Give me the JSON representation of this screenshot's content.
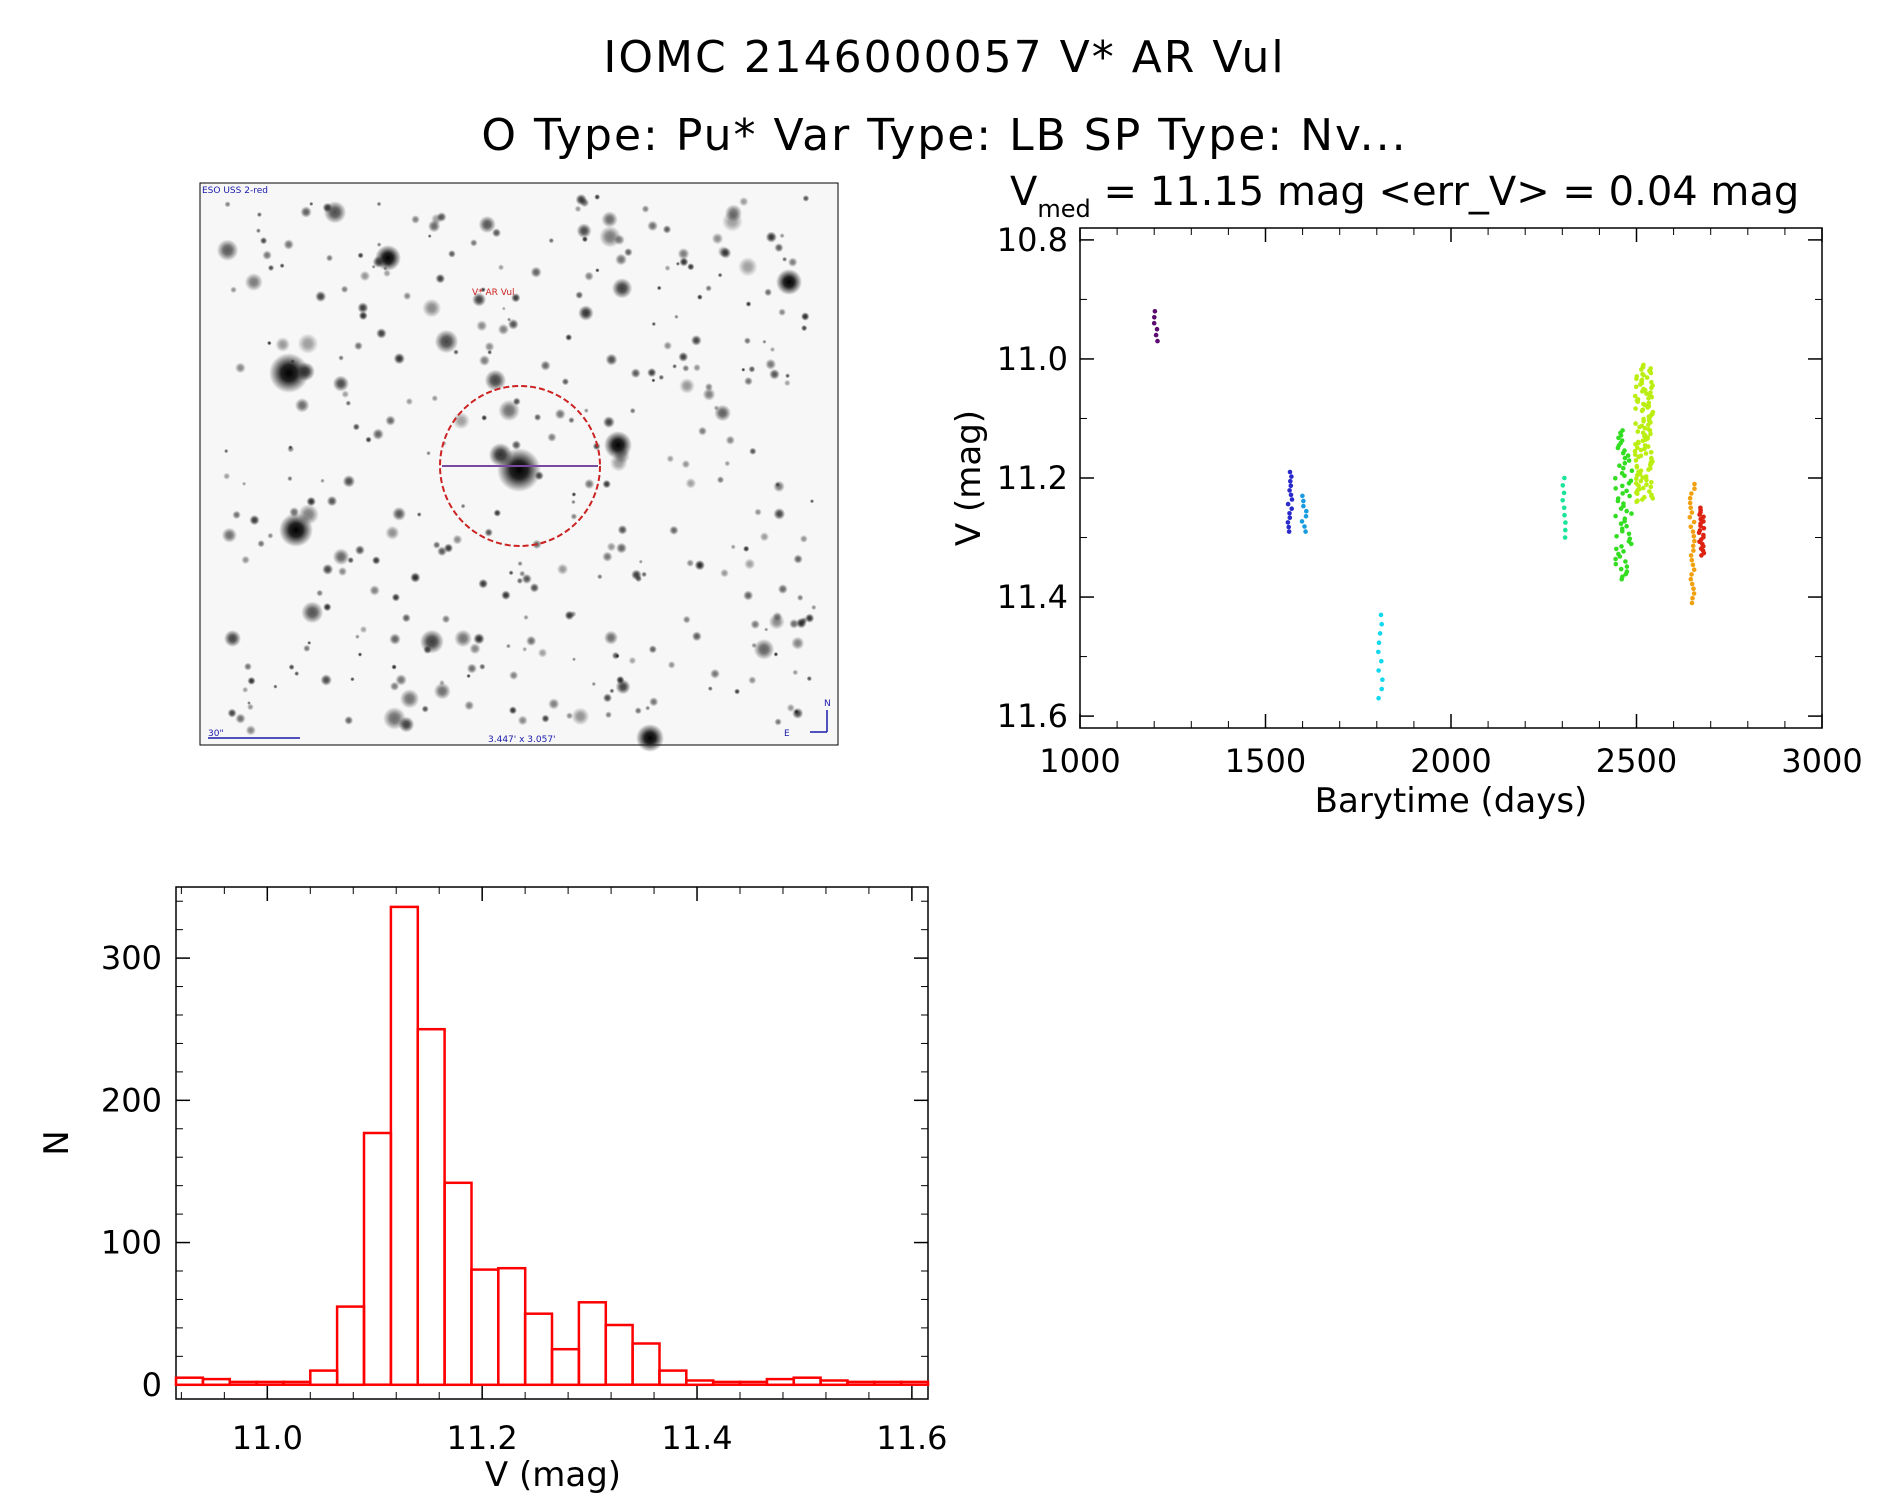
{
  "header": {
    "line1": "IOMC 2146000057    V* AR Vul",
    "line2": "O Type: Pu*  Var Type: LB  SP Type: Nv..."
  },
  "image_panel": {
    "survey_label": "ESO USS 2-red",
    "target_label": "V* AR Vul",
    "scale_label": "30\"",
    "fov_label": "3.447' x 3.057'",
    "north_label": "N",
    "east_label": "E"
  },
  "chart_data": [
    {
      "type": "scatter",
      "title_prefix": "V",
      "title_subscript": "med",
      "title_rest": " = 11.15 mag <err_V> = 0.04 mag",
      "xlabel": "Barytime (days)",
      "ylabel": "V (mag)",
      "xlim": [
        1000,
        3000
      ],
      "ylim": [
        11.62,
        10.78
      ],
      "xticks": [
        1000,
        1500,
        2000,
        2500,
        3000
      ],
      "xtick_labels": [
        "1000",
        "1500",
        "2000",
        "2500",
        "3000"
      ],
      "yticks": [
        10.8,
        11.0,
        11.2,
        11.4,
        11.6
      ],
      "ytick_labels": [
        "10.8",
        "11.0",
        "11.2",
        "11.4",
        "11.6"
      ],
      "groups": [
        {
          "x": 1205,
          "y_min": 10.92,
          "y_max": 10.97,
          "n": 6,
          "color": "#5a0a6e"
        },
        {
          "x": 1565,
          "y_min": 11.19,
          "y_max": 11.29,
          "n": 14,
          "color": "#2a2acc"
        },
        {
          "x": 1605,
          "y_min": 11.23,
          "y_max": 11.29,
          "n": 8,
          "color": "#1a9be0"
        },
        {
          "x": 1810,
          "y_min": 11.43,
          "y_max": 11.57,
          "n": 10,
          "color": "#11d8ee"
        },
        {
          "x": 2305,
          "y_min": 11.2,
          "y_max": 11.3,
          "n": 9,
          "color": "#1ae49a"
        },
        {
          "x": 2465,
          "y_min": 11.12,
          "y_max": 11.37,
          "n": 60,
          "color": "#33dd22"
        },
        {
          "x": 2520,
          "y_min": 11.01,
          "y_max": 11.24,
          "n": 120,
          "color": "#bbee11"
        },
        {
          "x": 2650,
          "y_min": 11.21,
          "y_max": 11.41,
          "n": 26,
          "color": "#f0a010"
        },
        {
          "x": 2675,
          "y_min": 11.25,
          "y_max": 11.33,
          "n": 22,
          "color": "#dd2211"
        }
      ]
    },
    {
      "type": "histogram",
      "xlabel": "V (mag)",
      "ylabel": "N",
      "xlim": [
        10.915,
        11.615
      ],
      "ylim": [
        -10,
        350
      ],
      "xticks": [
        11.0,
        11.2,
        11.4,
        11.6
      ],
      "xtick_labels": [
        "11.0",
        "11.2",
        "11.4",
        "11.6"
      ],
      "yticks": [
        0,
        100,
        200,
        300
      ],
      "ytick_labels": [
        "0",
        "100",
        "200",
        "300"
      ],
      "bin_start": 10.915,
      "bin_width": 0.025,
      "counts": [
        5,
        4,
        2,
        2,
        2,
        10,
        55,
        177,
        336,
        250,
        142,
        81,
        82,
        50,
        25,
        58,
        42,
        29,
        10,
        3,
        2,
        2,
        4,
        5,
        3,
        2,
        2,
        2
      ],
      "color": "#ff0000"
    }
  ]
}
